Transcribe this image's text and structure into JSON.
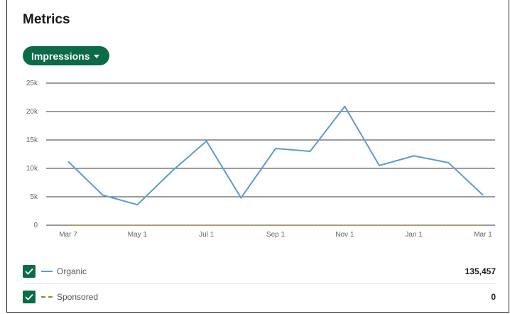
{
  "panel": {
    "title": "Metrics",
    "metric_selector": {
      "label": "Impressions",
      "icon": "caret-down-icon"
    }
  },
  "colors": {
    "accent": "#0b6b46",
    "organic_line": "#5b9bd5",
    "sponsored_line": "#9a8a1e"
  },
  "chart_data": {
    "type": "line",
    "x_tick_labels": [
      "Mar 7",
      "May 1",
      "Jul 1",
      "Sep 1",
      "Nov 1",
      "Jan 1",
      "Mar 1"
    ],
    "y_tick_labels": [
      "0",
      "5k",
      "10k",
      "15k",
      "20k",
      "25k"
    ],
    "ylim": [
      0,
      25000
    ],
    "grid": true,
    "x": [
      "Mar 7",
      "Apr 4",
      "May 1",
      "May 29",
      "Jul 1",
      "Jul 29",
      "Sep 1",
      "Sep 29",
      "Nov 1",
      "Nov 29",
      "Jan 1",
      "Jan 29",
      "Mar 1"
    ],
    "series": [
      {
        "name": "Organic",
        "values": [
          11200,
          5300,
          3600,
          9500,
          14800,
          4800,
          13500,
          13000,
          20900,
          10500,
          12200,
          11000,
          5300
        ]
      },
      {
        "name": "Sponsored",
        "values": [
          0,
          0,
          0,
          0,
          0,
          0,
          0,
          0,
          0,
          0,
          0,
          0,
          0
        ]
      }
    ]
  },
  "legend": [
    {
      "name": "Organic",
      "checked": true,
      "total": "135,457",
      "style": "solid"
    },
    {
      "name": "Sponsored",
      "checked": true,
      "total": "0",
      "style": "dashed"
    }
  ]
}
